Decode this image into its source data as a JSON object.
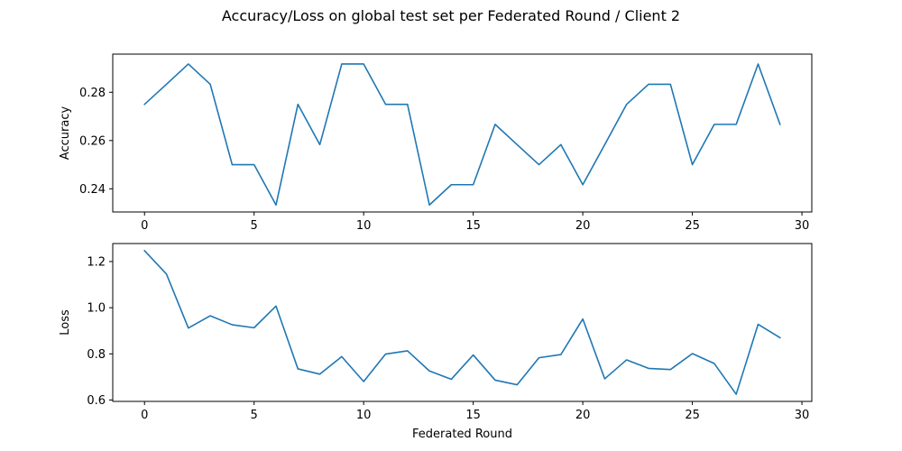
{
  "figure": {
    "title": "Accuracy/Loss on global test set per Federated Round / Client 2"
  },
  "colors": {
    "series": "#1f77b4",
    "axes": "#000000",
    "background": "#ffffff"
  },
  "chart_data": [
    {
      "type": "line",
      "ylabel": "Accuracy",
      "xlabel": "",
      "xlim": [
        -1.45,
        30.45
      ],
      "ylim": [
        0.2304,
        0.2958
      ],
      "xticks": [
        0,
        5,
        10,
        15,
        20,
        25,
        30
      ],
      "xtick_labels": [
        "0",
        "5",
        "10",
        "15",
        "20",
        "25",
        "30"
      ],
      "yticks": [
        0.24,
        0.26,
        0.28
      ],
      "ytick_labels": [
        "0.24",
        "0.26",
        "0.28"
      ],
      "grid": false,
      "x": [
        0,
        1,
        2,
        3,
        4,
        5,
        6,
        7,
        8,
        9,
        10,
        11,
        12,
        13,
        14,
        15,
        16,
        17,
        18,
        19,
        20,
        21,
        22,
        23,
        24,
        25,
        26,
        27,
        28,
        29
      ],
      "series": [
        {
          "values": [
            0.275,
            0.2833,
            0.2917,
            0.2833,
            0.25,
            0.25,
            0.2333,
            0.275,
            0.2583,
            0.2917,
            0.2917,
            0.275,
            0.275,
            0.2333,
            0.2417,
            0.2417,
            0.2667,
            0.2583,
            0.25,
            0.2583,
            0.2417,
            0.2583,
            0.275,
            0.2833,
            0.2833,
            0.25,
            0.2667,
            0.2667,
            0.2917,
            0.2667
          ]
        }
      ]
    },
    {
      "type": "line",
      "ylabel": "Loss",
      "xlabel": "Federated Round",
      "xlim": [
        -1.45,
        30.45
      ],
      "ylim": [
        0.594,
        1.278
      ],
      "xticks": [
        0,
        5,
        10,
        15,
        20,
        25,
        30
      ],
      "xtick_labels": [
        "0",
        "5",
        "10",
        "15",
        "20",
        "25",
        "30"
      ],
      "yticks": [
        0.6,
        0.8,
        1.0,
        1.2
      ],
      "ytick_labels": [
        "0.6",
        "0.8",
        "1.0",
        "1.2"
      ],
      "grid": false,
      "x": [
        0,
        1,
        2,
        3,
        4,
        5,
        6,
        7,
        8,
        9,
        10,
        11,
        12,
        13,
        14,
        15,
        16,
        17,
        18,
        19,
        20,
        21,
        22,
        23,
        24,
        25,
        26,
        27,
        28,
        29
      ],
      "series": [
        {
          "values": [
            1.247,
            1.146,
            0.912,
            0.965,
            0.926,
            0.913,
            1.007,
            0.735,
            0.712,
            0.788,
            0.68,
            0.799,
            0.813,
            0.726,
            0.69,
            0.795,
            0.686,
            0.666,
            0.783,
            0.797,
            0.951,
            0.692,
            0.774,
            0.737,
            0.732,
            0.801,
            0.758,
            0.625,
            0.928,
            0.87
          ]
        }
      ]
    }
  ]
}
